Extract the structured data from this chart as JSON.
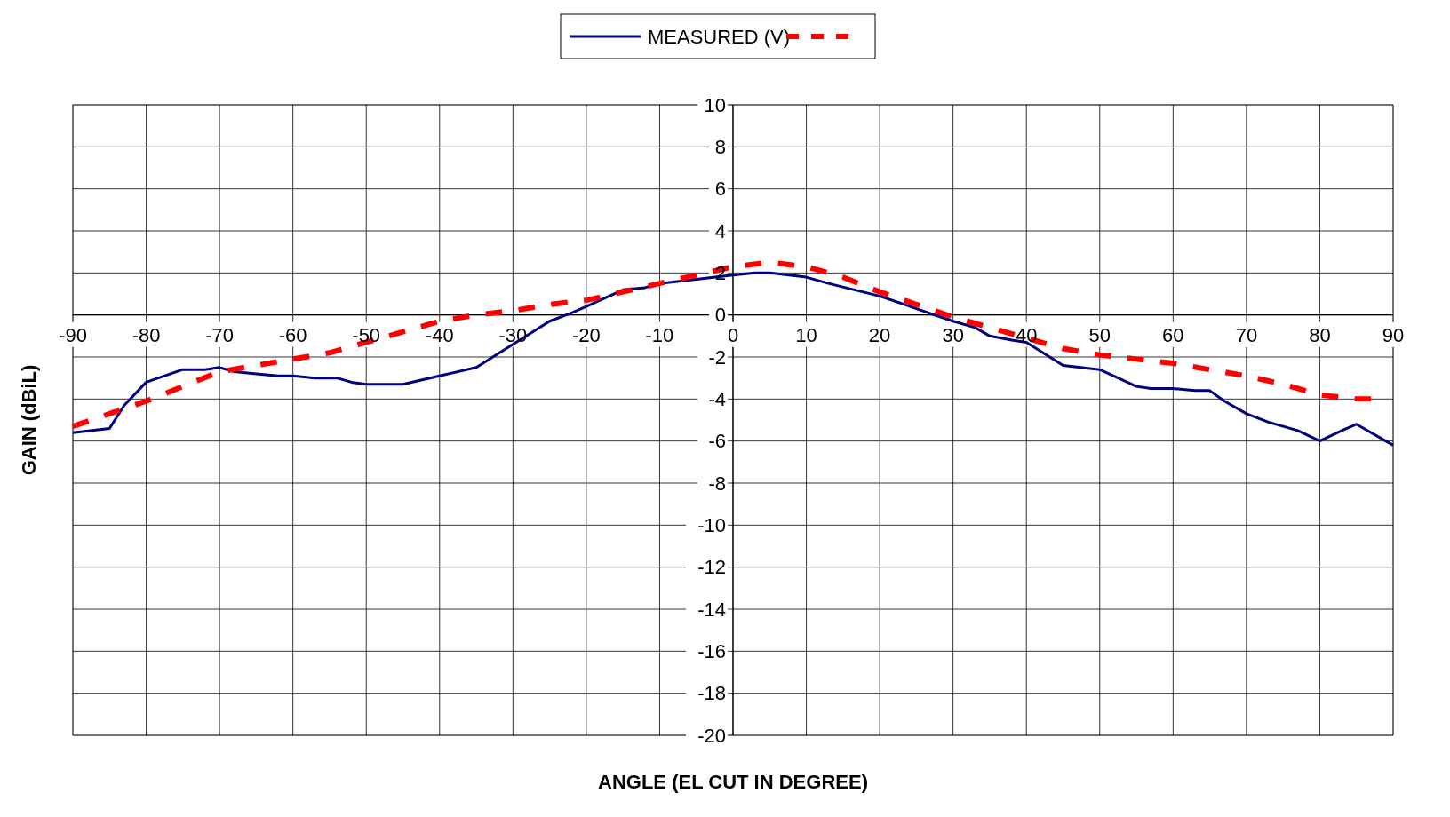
{
  "chart_data": {
    "type": "line",
    "xlabel": "ANGLE (EL CUT IN DEGREE)",
    "ylabel": "GAIN (dBiL)",
    "xlim": [
      -90,
      90
    ],
    "ylim": [
      -20,
      10
    ],
    "xticks": [
      -90,
      -80,
      -70,
      -60,
      -50,
      -40,
      -30,
      -20,
      -10,
      0,
      10,
      20,
      30,
      40,
      50,
      60,
      70,
      80,
      90
    ],
    "yticks": [
      -20,
      -18,
      -16,
      -14,
      -12,
      -10,
      -8,
      -6,
      -4,
      -2,
      0,
      2,
      4,
      6,
      8,
      10
    ],
    "grid": true,
    "legend": "top",
    "marker": "none",
    "series": [
      {
        "name": "MEASURED (V)",
        "color": "#000080",
        "line_style": "solid",
        "x": [
          -90,
          -85,
          -83,
          -80,
          -75,
          -72,
          -70,
          -68,
          -65,
          -62,
          -60,
          -57,
          -54,
          -52,
          -50,
          -45,
          -40,
          -35,
          -30,
          -25,
          -22,
          -20,
          -15,
          -12,
          -10,
          -5,
          0,
          3,
          5,
          10,
          13,
          20,
          25,
          30,
          33,
          35,
          38,
          40,
          45,
          50,
          55,
          57,
          60,
          63,
          65,
          67,
          70,
          73,
          77,
          80,
          83,
          85,
          90
        ],
        "values": [
          -5.6,
          -5.4,
          -4.3,
          -3.2,
          -2.6,
          -2.6,
          -2.5,
          -2.7,
          -2.8,
          -2.9,
          -2.9,
          -3.0,
          -3.0,
          -3.2,
          -3.3,
          -3.3,
          -2.9,
          -2.5,
          -1.4,
          -0.3,
          0.1,
          0.4,
          1.2,
          1.3,
          1.5,
          1.7,
          1.9,
          2.0,
          2.0,
          1.8,
          1.5,
          0.9,
          0.3,
          -0.3,
          -0.6,
          -1.0,
          -1.2,
          -1.3,
          -2.4,
          -2.6,
          -3.4,
          -3.5,
          -3.5,
          -3.6,
          -3.6,
          -4.1,
          -4.7,
          -5.1,
          -5.5,
          -6.0,
          -5.5,
          -5.2,
          -6.2
        ]
      },
      {
        "color": "#ff0000",
        "line_style": "dashed",
        "x": [
          -90,
          -85,
          -80,
          -75,
          -70,
          -65,
          -60,
          -55,
          -50,
          -45,
          -40,
          -35,
          -30,
          -25,
          -20,
          -15,
          -10,
          -5,
          0,
          5,
          10,
          15,
          20,
          25,
          30,
          35,
          40,
          45,
          50,
          55,
          60,
          65,
          70,
          75,
          80,
          85,
          87
        ],
        "values": [
          -5.3,
          -4.7,
          -4.1,
          -3.4,
          -2.7,
          -2.4,
          -2.1,
          -1.8,
          -1.3,
          -0.8,
          -0.3,
          0.0,
          0.2,
          0.5,
          0.7,
          1.1,
          1.5,
          1.9,
          2.3,
          2.5,
          2.3,
          1.8,
          1.1,
          0.5,
          -0.1,
          -0.6,
          -1.1,
          -1.6,
          -1.9,
          -2.1,
          -2.3,
          -2.6,
          -2.9,
          -3.3,
          -3.8,
          -4.0,
          -4.0
        ]
      }
    ]
  }
}
